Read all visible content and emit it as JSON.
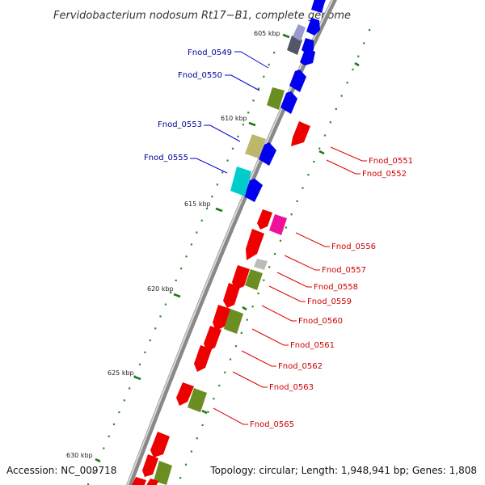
{
  "title": "Fervidobacterium nodosum Rt17−B1, complete genome",
  "accession": "Accession: NC_009718",
  "topology": "Topology: circular; Length: 1,948,941 bp; Genes: 1,808",
  "colors": {
    "forward_label": "#000099",
    "reverse_label": "#cc0000",
    "gene_red": "#ee0000",
    "gene_blue": "#0000ee",
    "gene_olive": "#6b8e23",
    "gene_khaki": "#bdb76b",
    "gene_cyan": "#00cccc",
    "gene_magenta": "#ee1199",
    "gene_gray": "#bbbbbb",
    "gene_slate": "#555566",
    "ticks": "#1a7a1a"
  },
  "scale_labels": [
    "605 kbp",
    "610 kbp",
    "615 kbp",
    "620 kbp",
    "625 kbp",
    "630 kbp"
  ],
  "forward_gene_labels": [
    "Fnod_0549",
    "Fnod_0550",
    "Fnod_0553",
    "Fnod_0555"
  ],
  "reverse_gene_labels": [
    "Fnod_0551",
    "Fnod_0552",
    "Fnod_0556",
    "Fnod_0557",
    "Fnod_0558",
    "Fnod_0559",
    "Fnod_0560",
    "Fnod_0561",
    "Fnod_0562",
    "Fnod_0563",
    "Fnod_0565"
  ]
}
